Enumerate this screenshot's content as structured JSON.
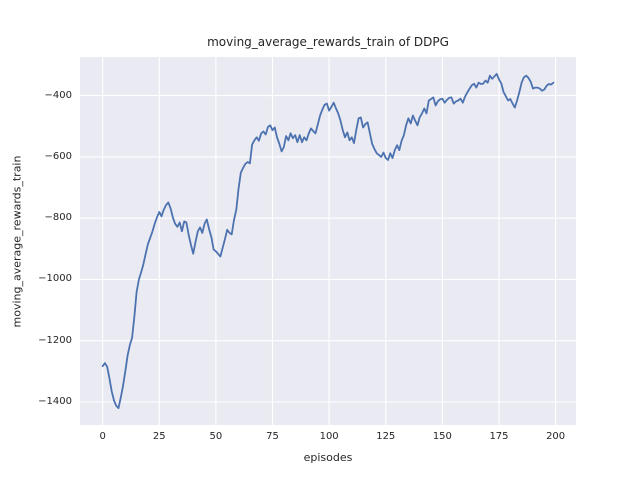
{
  "chart_data": {
    "type": "line",
    "title": "moving_average_rewards_train of DDPG",
    "xlabel": "episodes",
    "ylabel": "moving_average_rewards_train",
    "xlim": [
      -10,
      209
    ],
    "ylim": [
      -1475,
      -274
    ],
    "xticks": [
      0,
      25,
      50,
      75,
      100,
      125,
      150,
      175,
      200
    ],
    "yticks": [
      -400,
      -600,
      -800,
      -1000,
      -1200,
      -1400
    ],
    "grid": true,
    "legend_position": "none",
    "style": {
      "figure_background": "#ffffff",
      "plot_background": "#eaeaf2",
      "grid_color": "#ffffff",
      "line_color": "#4c72b0",
      "text_color": "#262626",
      "line_width": 1.8
    },
    "series": [
      {
        "name": "moving_average_rewards_train",
        "x_start": 0,
        "x_step": 1,
        "values": [
          -1283,
          -1273,
          -1285,
          -1322,
          -1365,
          -1395,
          -1412,
          -1420,
          -1385,
          -1348,
          -1300,
          -1248,
          -1215,
          -1190,
          -1120,
          -1041,
          -1000,
          -976,
          -950,
          -916,
          -885,
          -864,
          -843,
          -818,
          -797,
          -780,
          -794,
          -772,
          -757,
          -749,
          -768,
          -798,
          -818,
          -828,
          -814,
          -843,
          -811,
          -814,
          -855,
          -888,
          -916,
          -878,
          -843,
          -830,
          -848,
          -818,
          -804,
          -836,
          -862,
          -902,
          -908,
          -917,
          -925,
          -896,
          -869,
          -838,
          -848,
          -853,
          -806,
          -772,
          -705,
          -652,
          -636,
          -623,
          -617,
          -621,
          -560,
          -546,
          -536,
          -547,
          -523,
          -517,
          -527,
          -502,
          -497,
          -513,
          -504,
          -536,
          -557,
          -582,
          -568,
          -532,
          -546,
          -523,
          -539,
          -529,
          -552,
          -529,
          -552,
          -536,
          -546,
          -524,
          -507,
          -516,
          -523,
          -494,
          -465,
          -446,
          -430,
          -426,
          -449,
          -437,
          -423,
          -441,
          -458,
          -482,
          -512,
          -536,
          -520,
          -546,
          -536,
          -555,
          -512,
          -474,
          -471,
          -504,
          -493,
          -487,
          -523,
          -558,
          -574,
          -588,
          -594,
          -600,
          -586,
          -604,
          -610,
          -588,
          -604,
          -578,
          -562,
          -578,
          -547,
          -529,
          -497,
          -474,
          -491,
          -465,
          -482,
          -497,
          -471,
          -458,
          -442,
          -458,
          -416,
          -411,
          -406,
          -432,
          -419,
          -412,
          -410,
          -423,
          -414,
          -407,
          -406,
          -426,
          -419,
          -416,
          -410,
          -423,
          -404,
          -390,
          -377,
          -366,
          -361,
          -374,
          -358,
          -362,
          -361,
          -351,
          -358,
          -335,
          -345,
          -337,
          -329,
          -347,
          -360,
          -388,
          -402,
          -416,
          -411,
          -426,
          -439,
          -416,
          -388,
          -358,
          -340,
          -335,
          -342,
          -355,
          -377,
          -374,
          -374,
          -377,
          -384,
          -380,
          -368,
          -362,
          -364,
          -358
        ]
      }
    ]
  }
}
